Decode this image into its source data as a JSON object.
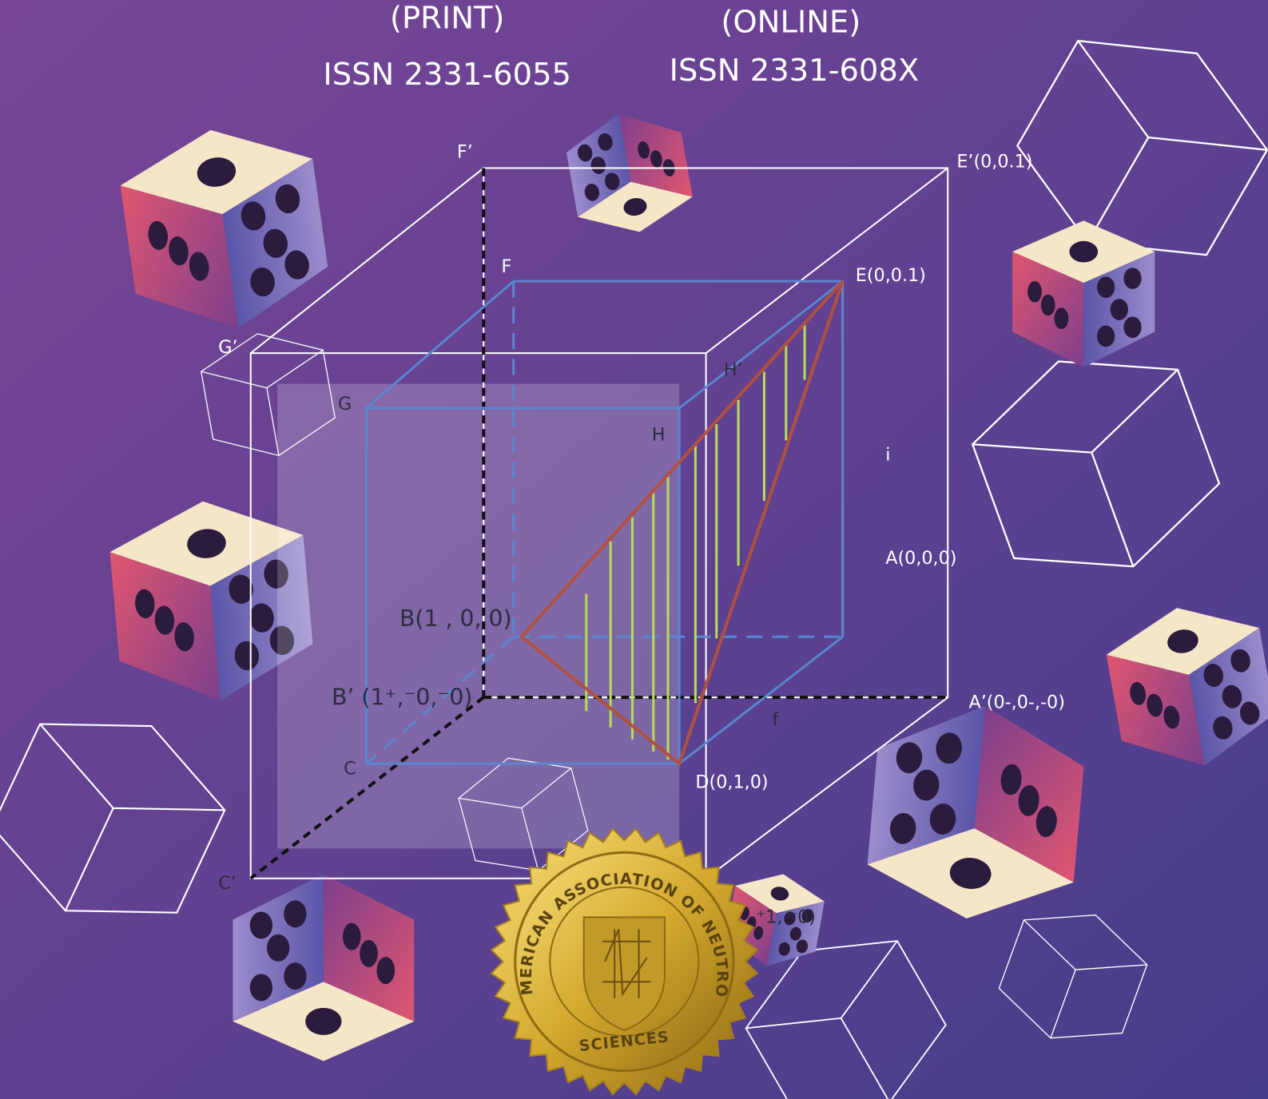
{
  "header": {
    "print_label": "(PRINT)",
    "print_issn": "ISSN 2331-6055",
    "online_label": "(ONLINE)",
    "online_issn": "ISSN 2331-608X"
  },
  "diagram": {
    "labels": [
      "F’",
      "E’(0,0.1)",
      "F",
      "E(0,0.1)",
      "G’",
      "G",
      "H’",
      "H",
      "i",
      "A(0,0,0)",
      "B(1  , 0,  0)",
      "B’ (1⁺,⁻0,⁻0)",
      "A’(0-,0-,-0)",
      "f",
      "C",
      "D(0,1,0)",
      "C’",
      "⁺1, ⁻0)"
    ]
  },
  "seal": {
    "arc_text": "LATIN AMERICAN ASSOCIATION OF NEUTROSOPHIC",
    "bottom_text": "SCIENCES"
  }
}
